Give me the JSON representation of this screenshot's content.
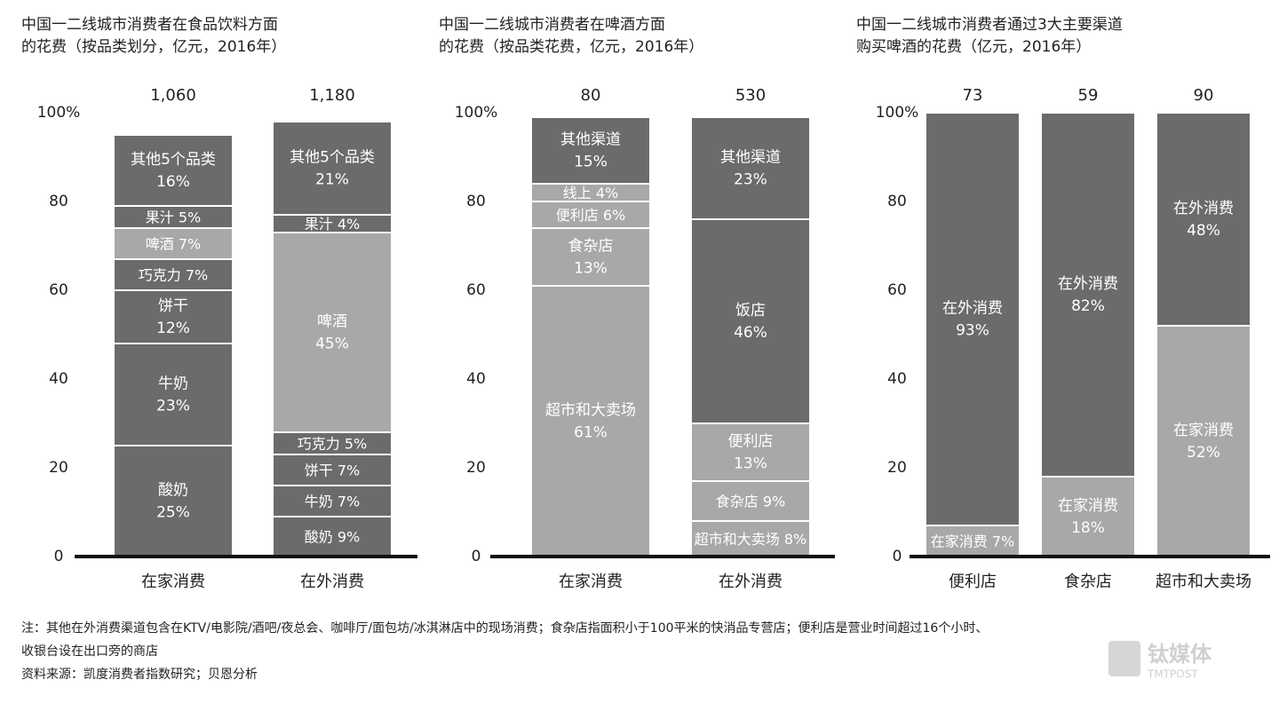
{
  "chart_data": [
    {
      "type": "stacked_bar",
      "title": [
        "中国一二线城市消费者在食品饮料方面",
        "的花费（按品类划分，亿元，2016年）"
      ],
      "ylim": [
        0,
        100
      ],
      "yticks": [
        0,
        20,
        40,
        60,
        80,
        {
          "value": 100,
          "label": "100%"
        }
      ],
      "bars": [
        {
          "name": "在家消费",
          "total": 1060,
          "total_label": "1,060",
          "segments": [
            {
              "name": "酸奶",
              "value": 25,
              "value_label": "25%",
              "color": "#6b6b6b"
            },
            {
              "name": "牛奶",
              "value": 23,
              "value_label": "23%",
              "color": "#6b6b6b"
            },
            {
              "name": "饼干",
              "value": 12,
              "value_label": "12%",
              "color": "#6b6b6b"
            },
            {
              "name": "巧克力",
              "value": 7,
              "value_label": "7%",
              "color": "#6b6b6b"
            },
            {
              "name": "啤酒",
              "value": 7,
              "value_label": "7%",
              "color": "#a8a8a8"
            },
            {
              "name": "果汁",
              "value": 5,
              "value_label": "5%",
              "color": "#6b6b6b"
            },
            {
              "name": "其他5个品类",
              "value": 16,
              "value_label": "16%",
              "color": "#6b6b6b"
            }
          ]
        },
        {
          "name": "在外消费",
          "total": 1180,
          "total_label": "1,180",
          "segments": [
            {
              "name": "酸奶",
              "value": 9,
              "value_label": "9%",
              "color": "#6b6b6b"
            },
            {
              "name": "牛奶",
              "value": 7,
              "value_label": "7%",
              "color": "#6b6b6b"
            },
            {
              "name": "饼干",
              "value": 7,
              "value_label": "7%",
              "color": "#6b6b6b"
            },
            {
              "name": "巧克力",
              "value": 5,
              "value_label": "5%",
              "color": "#6b6b6b"
            },
            {
              "name": "啤酒",
              "value": 45,
              "value_label": "45%",
              "color": "#a8a8a8"
            },
            {
              "name": "果汁",
              "value": 4,
              "value_label": "4%",
              "color": "#6b6b6b"
            },
            {
              "name": "其他5个品类",
              "value": 21,
              "value_label": "21%",
              "color": "#6b6b6b"
            }
          ]
        }
      ]
    },
    {
      "type": "stacked_bar",
      "title": [
        "中国一二线城市消费者在啤酒方面",
        "的花费（按品类花费，亿元，2016年）"
      ],
      "ylim": [
        0,
        100
      ],
      "yticks": [
        0,
        20,
        40,
        60,
        80,
        {
          "value": 100,
          "label": "100%"
        }
      ],
      "bars": [
        {
          "name": "在家消费",
          "total": 80,
          "segments": [
            {
              "name": "超市和大卖场",
              "value": 61,
              "value_label": "61%",
              "color": "#a8a8a8"
            },
            {
              "name": "食杂店",
              "value": 13,
              "value_label": "13%",
              "color": "#a8a8a8"
            },
            {
              "name": "便利店",
              "value": 6,
              "value_label": "6%",
              "color": "#a8a8a8"
            },
            {
              "name": "线上",
              "value": 4,
              "value_label": "4%",
              "color": "#a8a8a8"
            },
            {
              "name": "其他渠道",
              "value": 15,
              "value_label": "15%",
              "color": "#6b6b6b"
            }
          ]
        },
        {
          "name": "在外消费",
          "total": 530,
          "segments": [
            {
              "name": "超市和大卖场",
              "value": 8,
              "value_label": "8%",
              "color": "#a8a8a8"
            },
            {
              "name": "食杂店",
              "value": 9,
              "value_label": "9%",
              "color": "#a8a8a8"
            },
            {
              "name": "便利店",
              "value": 13,
              "value_label": "13%",
              "color": "#a8a8a8"
            },
            {
              "name": "饭店",
              "value": 46,
              "value_label": "46%",
              "color": "#6b6b6b"
            },
            {
              "name": "其他渠道",
              "value": 23,
              "value_label": "23%",
              "color": "#6b6b6b"
            }
          ]
        }
      ]
    },
    {
      "type": "stacked_bar",
      "title": [
        "中国一二线城市消费者通过3大主要渠道",
        "购买啤酒的花费（亿元，2016年）"
      ],
      "ylim": [
        0,
        100
      ],
      "yticks": [
        0,
        20,
        40,
        60,
        80,
        {
          "value": 100,
          "label": "100%"
        }
      ],
      "bars": [
        {
          "name": "便利店",
          "total": 73,
          "segments": [
            {
              "name": "在家消费",
              "value": 7,
              "value_label": "7%",
              "color": "#a8a8a8"
            },
            {
              "name": "在外消费",
              "value": 93,
              "value_label": "93%",
              "color": "#6b6b6b"
            }
          ]
        },
        {
          "name": "食杂店",
          "total": 59,
          "segments": [
            {
              "name": "在家消费",
              "value": 18,
              "value_label": "18%",
              "color": "#a8a8a8"
            },
            {
              "name": "在外消费",
              "value": 82,
              "value_label": "82%",
              "color": "#6b6b6b"
            }
          ]
        },
        {
          "name": "超市和大卖场",
          "total": 90,
          "segments": [
            {
              "name": "在家消费",
              "value": 52,
              "value_label": "52%",
              "color": "#a8a8a8"
            },
            {
              "name": "在外消费",
              "value": 48,
              "value_label": "48%",
              "color": "#6b6b6b"
            }
          ]
        }
      ]
    }
  ],
  "notes": [
    "注：其他在外消费渠道包含在KTV/电影院/酒吧/夜总会、咖啡厅/面包坊/冰淇淋店中的现场消费；食杂店指面积小于100平米的快消品专营店；便利店是营业时间超过16个小时、",
    "收银台设在出口旁的商店",
    "资料来源：凯度消费者指数研究；贝恩分析"
  ],
  "watermark": [
    "钛媒体",
    "TMTPOST"
  ]
}
